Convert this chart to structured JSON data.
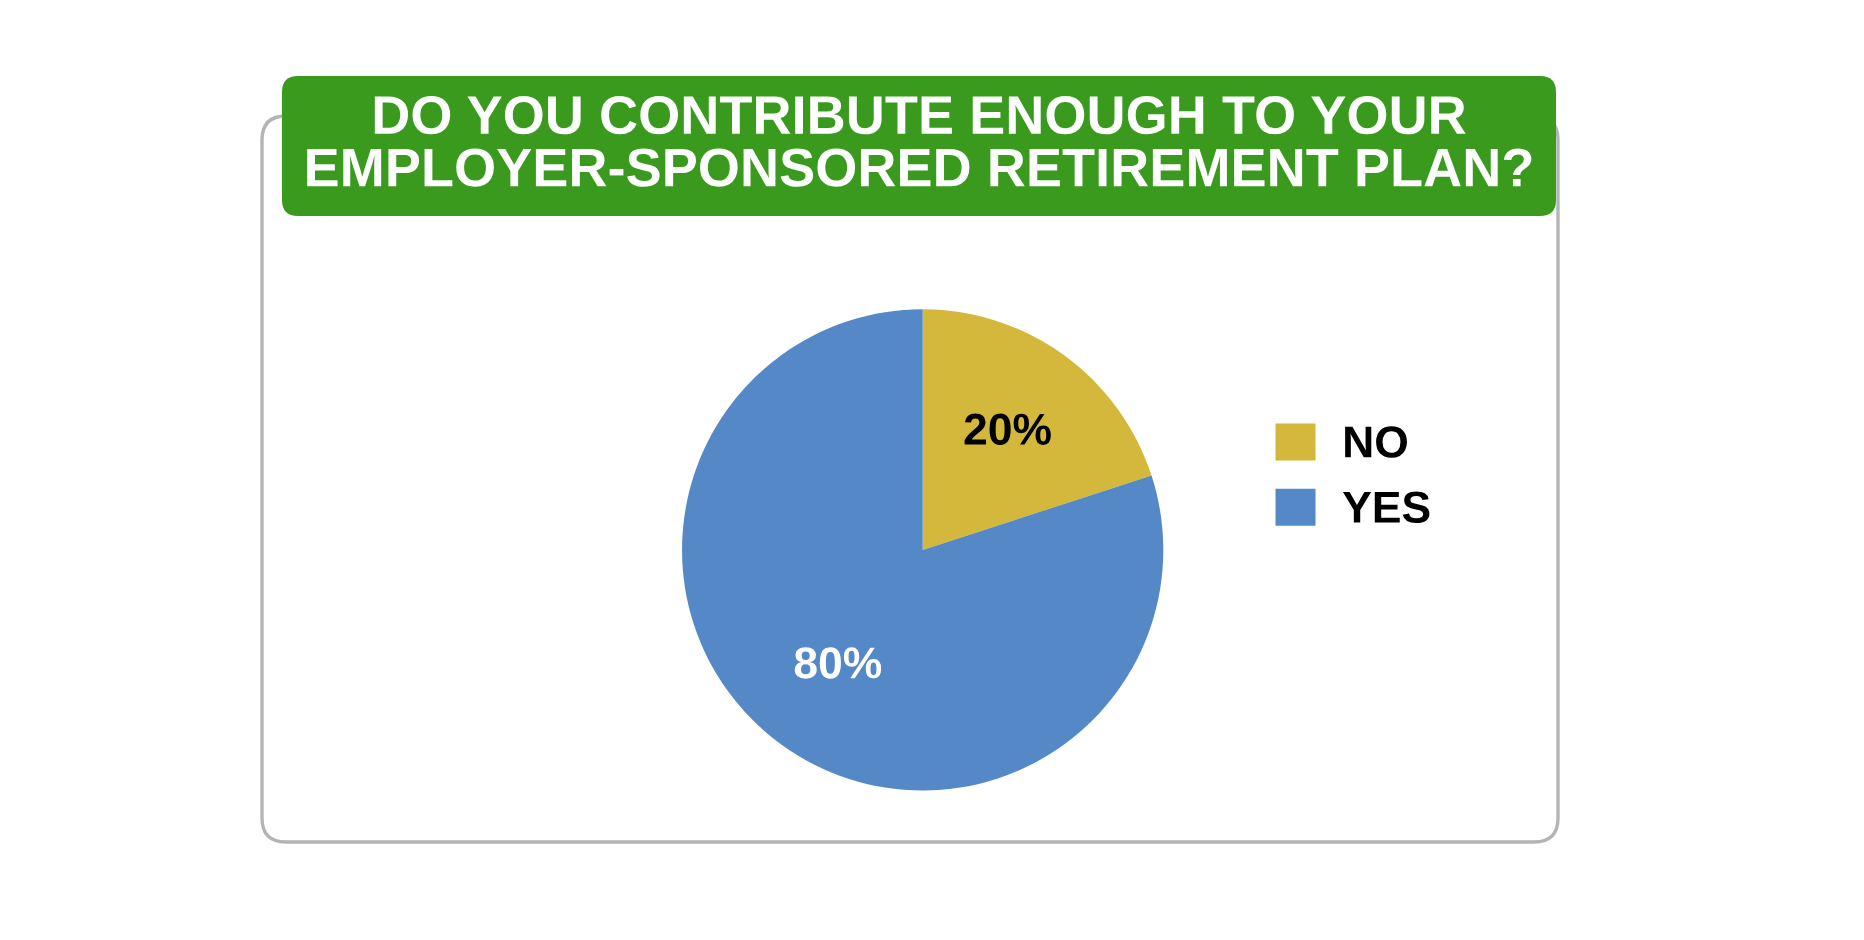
{
  "chart_data": {
    "type": "pie",
    "title": "DO YOU CONTRIBUTE ENOUGH TO YOUR\nEMPLOYER-SPONSORED RETIREMENT PLAN?",
    "categories": [
      "NO",
      "YES"
    ],
    "values": [
      20,
      80
    ],
    "colors": [
      "#d4b83c",
      "#5488c6"
    ],
    "value_labels": [
      "20%",
      "80%"
    ],
    "legend": "right"
  }
}
